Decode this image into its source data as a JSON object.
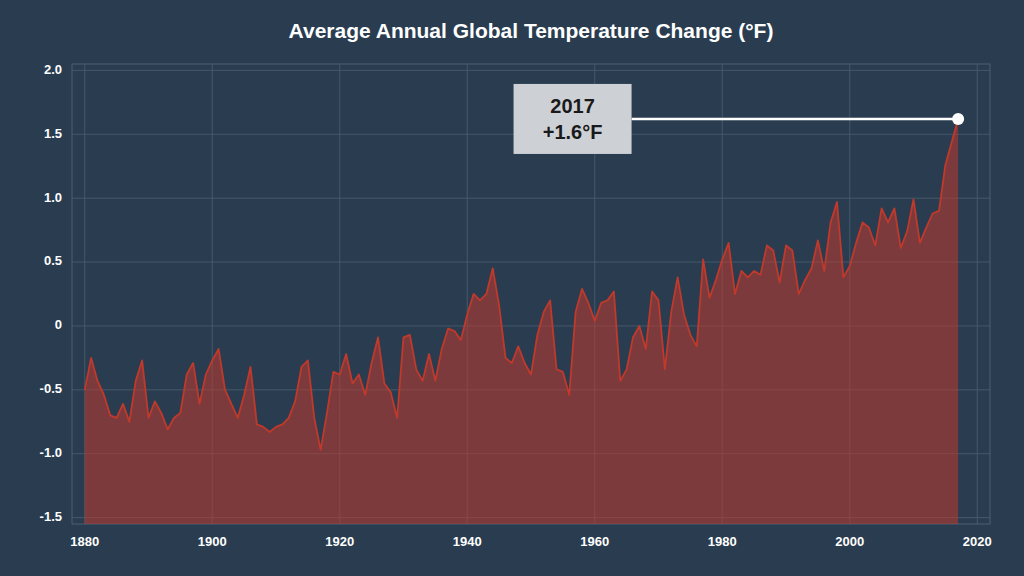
{
  "chart_data": {
    "type": "area",
    "title": "Average Annual Global Temperature Change (°F)",
    "x": [
      1880,
      1881,
      1882,
      1883,
      1884,
      1885,
      1886,
      1887,
      1888,
      1889,
      1890,
      1891,
      1892,
      1893,
      1894,
      1895,
      1896,
      1897,
      1898,
      1899,
      1900,
      1901,
      1902,
      1903,
      1904,
      1905,
      1906,
      1907,
      1908,
      1909,
      1910,
      1911,
      1912,
      1913,
      1914,
      1915,
      1916,
      1917,
      1918,
      1919,
      1920,
      1921,
      1922,
      1923,
      1924,
      1925,
      1926,
      1927,
      1928,
      1929,
      1930,
      1931,
      1932,
      1933,
      1934,
      1935,
      1936,
      1937,
      1938,
      1939,
      1940,
      1941,
      1942,
      1943,
      1944,
      1945,
      1946,
      1947,
      1948,
      1949,
      1950,
      1951,
      1952,
      1953,
      1954,
      1955,
      1956,
      1957,
      1958,
      1959,
      1960,
      1961,
      1962,
      1963,
      1964,
      1965,
      1966,
      1967,
      1968,
      1969,
      1970,
      1971,
      1972,
      1973,
      1974,
      1975,
      1976,
      1977,
      1978,
      1979,
      1980,
      1981,
      1982,
      1983,
      1984,
      1985,
      1986,
      1987,
      1988,
      1989,
      1990,
      1991,
      1992,
      1993,
      1994,
      1995,
      1996,
      1997,
      1998,
      1999,
      2000,
      2001,
      2002,
      2003,
      2004,
      2005,
      2006,
      2007,
      2008,
      2009,
      2010,
      2011,
      2012,
      2013,
      2014,
      2015,
      2016,
      2017
    ],
    "values": [
      -0.5,
      -0.25,
      -0.43,
      -0.54,
      -0.7,
      -0.72,
      -0.61,
      -0.75,
      -0.43,
      -0.27,
      -0.72,
      -0.59,
      -0.68,
      -0.81,
      -0.72,
      -0.68,
      -0.38,
      -0.29,
      -0.61,
      -0.38,
      -0.27,
      -0.18,
      -0.5,
      -0.61,
      -0.72,
      -0.54,
      -0.32,
      -0.77,
      -0.79,
      -0.83,
      -0.79,
      -0.77,
      -0.72,
      -0.59,
      -0.32,
      -0.27,
      -0.72,
      -0.97,
      -0.68,
      -0.36,
      -0.38,
      -0.22,
      -0.45,
      -0.38,
      -0.54,
      -0.29,
      -0.09,
      -0.45,
      -0.52,
      -0.72,
      -0.09,
      -0.07,
      -0.34,
      -0.43,
      -0.22,
      -0.43,
      -0.18,
      -0.02,
      -0.04,
      -0.11,
      0.09,
      0.25,
      0.2,
      0.25,
      0.45,
      0.16,
      -0.25,
      -0.29,
      -0.16,
      -0.29,
      -0.38,
      -0.07,
      0.11,
      0.2,
      -0.34,
      -0.36,
      -0.54,
      0.11,
      0.29,
      0.18,
      0.04,
      0.18,
      0.2,
      0.27,
      -0.43,
      -0.34,
      -0.09,
      0.0,
      -0.18,
      0.27,
      0.2,
      -0.34,
      0.11,
      0.38,
      0.09,
      -0.07,
      -0.16,
      0.52,
      0.22,
      0.36,
      0.52,
      0.65,
      0.25,
      0.43,
      0.38,
      0.43,
      0.4,
      0.63,
      0.59,
      0.34,
      0.63,
      0.59,
      0.25,
      0.36,
      0.45,
      0.67,
      0.43,
      0.81,
      0.97,
      0.38,
      0.47,
      0.65,
      0.81,
      0.77,
      0.63,
      0.92,
      0.81,
      0.92,
      0.61,
      0.74,
      0.99,
      0.65,
      0.77,
      0.88,
      0.9,
      1.26,
      1.44,
      1.62
    ],
    "color": "#c0392b",
    "xlim": [
      1878,
      2022
    ],
    "ylim": [
      -1.55,
      2.05
    ],
    "xticks": [
      1880,
      1900,
      1920,
      1940,
      1960,
      1980,
      2000,
      2020
    ],
    "yticks": [
      -1.5,
      {
        "value": -1.0,
        "label": "-1.0"
      },
      -0.5,
      0,
      0.5,
      {
        "value": 1.0,
        "label": "1.0"
      },
      1.5,
      {
        "value": 2.0,
        "label": "2.0"
      }
    ],
    "grid": true,
    "annotations": [
      {
        "text": "2017\n+1.6°F",
        "x": 2017,
        "y": 1.62
      }
    ]
  }
}
